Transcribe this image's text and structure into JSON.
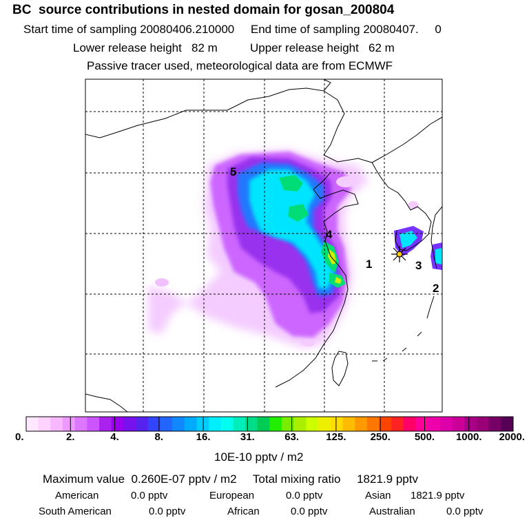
{
  "header": {
    "title": "BC  source contributions in nested domain for gosan_200804",
    "start_label": "Start time of sampling",
    "start_value": "20080406.210000",
    "end_label": "End time of sampling",
    "end_value": "20080407.",
    "end_hour": "0",
    "lower_label": "Lower release height",
    "lower_value": "82 m",
    "upper_label": "Upper release height",
    "upper_value": "62 m",
    "note": "Passive tracer used, meteorological data are from ECMWF"
  },
  "map": {
    "region_labels": [
      "1",
      "2",
      "3",
      "4",
      "5"
    ],
    "receptor": "gosan-receptor"
  },
  "colorbar": {
    "ticks": [
      "0.",
      "2.",
      "4.",
      "8.",
      "16.",
      "31.",
      "63.",
      "125.",
      "250.",
      "500.",
      "1000.",
      "2000."
    ],
    "colors": [
      "#ffe8ff",
      "#ffd2ff",
      "#f7b8ff",
      "#ee99ff",
      "#dd77ff",
      "#cc55ff",
      "#aa22ee",
      "#9900ee",
      "#7711ee",
      "#5522ee",
      "#3344ff",
      "#2266ff",
      "#1188ff",
      "#00aaff",
      "#00ccff",
      "#00eeff",
      "#00ffee",
      "#00eebb",
      "#00dd88",
      "#00cc55",
      "#22ee00",
      "#77ee00",
      "#aaee00",
      "#ccff00",
      "#eeee00",
      "#ffdd00",
      "#ffbb00",
      "#ff9900",
      "#ff7700",
      "#ff4400",
      "#ff2222",
      "#ff0066",
      "#ff0099",
      "#ee00aa",
      "#dd00aa",
      "#cc0099",
      "#aa0088",
      "#990077",
      "#770066",
      "#550055"
    ],
    "unit": "10E-10 pptv / m2"
  },
  "summary": {
    "max_label": "Maximum value",
    "max_value": "0.260E-07 pptv / m2",
    "total_label": "Total mixing ratio",
    "total_value": "1821.9 pptv",
    "sources": [
      {
        "name": "American",
        "value": "0.0 pptv"
      },
      {
        "name": "European",
        "value": "0.0 pptv"
      },
      {
        "name": "Asian",
        "value": "1821.9 pptv"
      },
      {
        "name": "South American",
        "value": "0.0 pptv"
      },
      {
        "name": "African",
        "value": "0.0 pptv"
      },
      {
        "name": "Australian",
        "value": "0.0 pptv"
      }
    ]
  }
}
